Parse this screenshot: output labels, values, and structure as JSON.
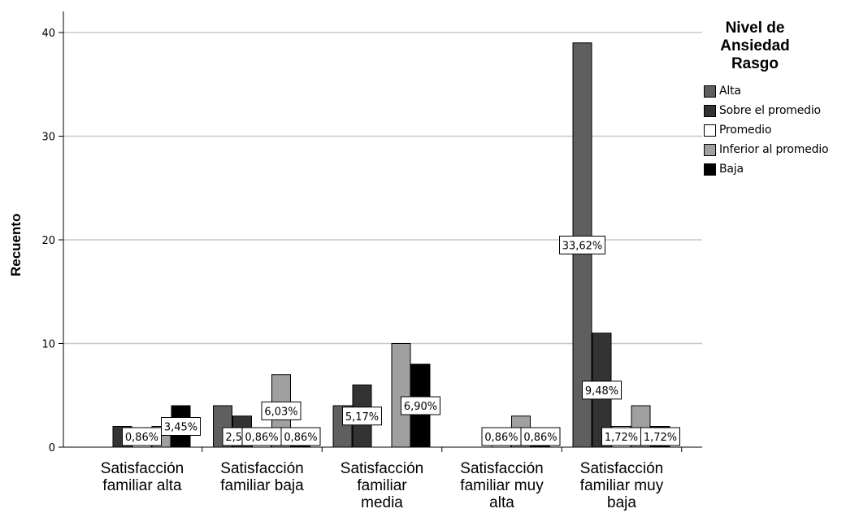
{
  "chart_data": {
    "type": "bar",
    "ylabel": "Recuento",
    "ylim": [
      0,
      42
    ],
    "yticks": [
      0,
      10,
      20,
      30,
      40
    ],
    "grid": true,
    "legend_title": [
      "Nivel de",
      "Ansiedad",
      "Rasgo"
    ],
    "legend_placement": "right",
    "categories": [
      [
        "Satisfacción",
        "familiar alta"
      ],
      [
        "Satisfacción",
        "familiar baja"
      ],
      [
        "Satisfacción",
        "familiar",
        "media"
      ],
      [
        "Satisfacción",
        "familiar muy",
        "alta"
      ],
      [
        "Satisfacción",
        "familiar muy",
        "baja"
      ]
    ],
    "series": [
      {
        "name": "Alta",
        "color": "#5f5f5f",
        "values": [
          null,
          4,
          4,
          null,
          39
        ],
        "labels": [
          null,
          null,
          null,
          null,
          "33,62%"
        ]
      },
      {
        "name": "Sobre el promedio",
        "color": "#333333",
        "values": [
          2,
          3,
          6,
          null,
          11
        ],
        "labels": [
          null,
          "2,59%",
          "5,17%",
          null,
          "9,48%"
        ]
      },
      {
        "name": "Promedio",
        "color": "#ffffff",
        "values": [
          1,
          1,
          null,
          1,
          2
        ],
        "labels": [
          "0,86%",
          "0,86%",
          null,
          "0,86%",
          "1,72%"
        ]
      },
      {
        "name": "Inferior al promedio",
        "color": "#a0a0a0",
        "values": [
          2,
          7,
          10,
          3,
          4
        ],
        "labels": [
          null,
          "6,03%",
          null,
          null,
          null
        ]
      },
      {
        "name": "Baja",
        "color": "#000000",
        "values": [
          4,
          1,
          8,
          1,
          2
        ],
        "labels": [
          "3,45%",
          "0,86%",
          "6,90%",
          "0,86%",
          "1,72%"
        ]
      }
    ],
    "annotations": [
      "0,86%",
      "0,86%",
      "3,45%",
      "2,59%",
      "6,03%",
      "0,86%",
      "5,17%",
      "6,90%",
      "0,86%",
      "0,86%",
      "33,62%",
      "9,48%",
      "1,72%",
      "1,72%"
    ]
  }
}
